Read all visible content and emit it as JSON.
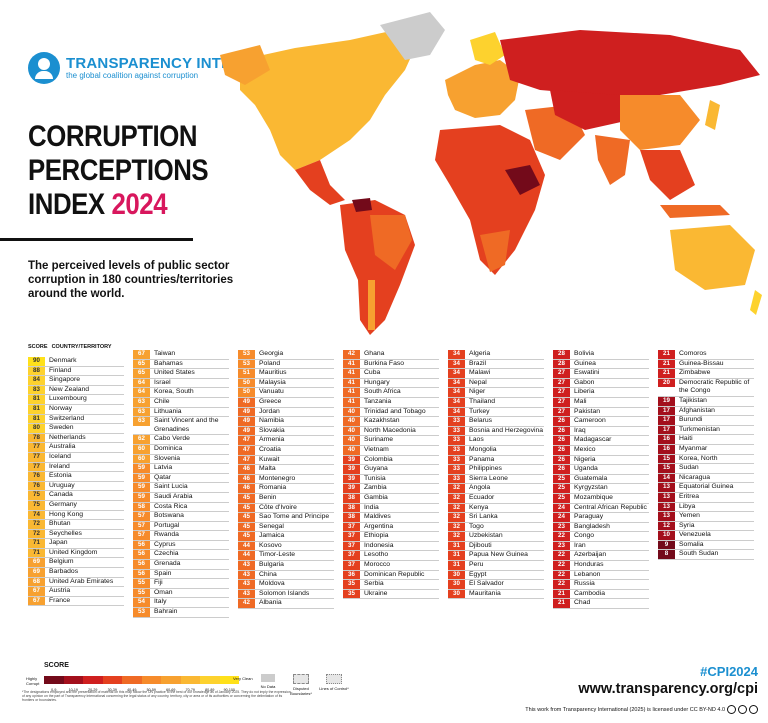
{
  "logo": {
    "name": "TRANSPARENCY INTERNATIONAL",
    "tagline": "the global coalition against corruption"
  },
  "title": {
    "line1": "CORRUPTION",
    "line2": "PERCEPTIONS",
    "line3": "INDEX",
    "year": "2024"
  },
  "subtitle": "The perceived levels of public sector corruption in 180 countries/territories around the world.",
  "table_header": {
    "score": "SCORE",
    "country": "COUNTRY/TERRITORY"
  },
  "colors": {
    "c90": "#ffe11a",
    "c80": "#fdd22e",
    "c70": "#fab833",
    "c60": "#f7a130",
    "c50": "#f68b2b",
    "c40": "#ef6a25",
    "c30": "#e4401f",
    "c20": "#cf1f1f",
    "c10": "#a30f1c",
    "c0": "#730a1a",
    "none": "#cccccc",
    "grid": "#e6e6e6"
  },
  "chart_data": {
    "type": "table",
    "title": "CORRUPTION PERCEPTIONS INDEX 2024",
    "columns": [
      "SCORE",
      "COUNTRY/TERRITORY"
    ],
    "rows": [
      [
        90,
        "Denmark"
      ],
      [
        88,
        "Finland"
      ],
      [
        84,
        "Singapore"
      ],
      [
        83,
        "New Zealand"
      ],
      [
        81,
        "Luxembourg"
      ],
      [
        81,
        "Norway"
      ],
      [
        81,
        "Switzerland"
      ],
      [
        80,
        "Sweden"
      ],
      [
        78,
        "Netherlands"
      ],
      [
        77,
        "Australia"
      ],
      [
        77,
        "Iceland"
      ],
      [
        77,
        "Ireland"
      ],
      [
        76,
        "Estonia"
      ],
      [
        76,
        "Uruguay"
      ],
      [
        75,
        "Canada"
      ],
      [
        75,
        "Germany"
      ],
      [
        74,
        "Hong Kong"
      ],
      [
        72,
        "Bhutan"
      ],
      [
        72,
        "Seychelles"
      ],
      [
        71,
        "Japan"
      ],
      [
        71,
        "United Kingdom"
      ],
      [
        69,
        "Belgium"
      ],
      [
        69,
        "Barbados"
      ],
      [
        68,
        "United Arab Emirates"
      ],
      [
        67,
        "Austria"
      ],
      [
        67,
        "France"
      ],
      [
        67,
        "Taiwan"
      ],
      [
        65,
        "Bahamas"
      ],
      [
        65,
        "United States"
      ],
      [
        64,
        "Israel"
      ],
      [
        64,
        "Korea, South"
      ],
      [
        63,
        "Chile"
      ],
      [
        63,
        "Lithuania"
      ],
      [
        63,
        "Saint Vincent and the Grenadines"
      ],
      [
        62,
        "Cabo Verde"
      ],
      [
        60,
        "Dominica"
      ],
      [
        60,
        "Slovenia"
      ],
      [
        59,
        "Latvia"
      ],
      [
        59,
        "Qatar"
      ],
      [
        59,
        "Saint Lucia"
      ],
      [
        59,
        "Saudi Arabia"
      ],
      [
        58,
        "Costa Rica"
      ],
      [
        57,
        "Botswana"
      ],
      [
        57,
        "Portugal"
      ],
      [
        57,
        "Rwanda"
      ],
      [
        56,
        "Cyprus"
      ],
      [
        56,
        "Czechia"
      ],
      [
        56,
        "Grenada"
      ],
      [
        56,
        "Spain"
      ],
      [
        55,
        "Fiji"
      ],
      [
        55,
        "Oman"
      ],
      [
        54,
        "Italy"
      ],
      [
        53,
        "Bahrain"
      ],
      [
        53,
        "Georgia"
      ],
      [
        53,
        "Poland"
      ],
      [
        51,
        "Mauritius"
      ],
      [
        50,
        "Malaysia"
      ],
      [
        50,
        "Vanuatu"
      ],
      [
        49,
        "Greece"
      ],
      [
        49,
        "Jordan"
      ],
      [
        49,
        "Namibia"
      ],
      [
        49,
        "Slovakia"
      ],
      [
        47,
        "Armenia"
      ],
      [
        47,
        "Croatia"
      ],
      [
        47,
        "Kuwait"
      ],
      [
        46,
        "Malta"
      ],
      [
        46,
        "Montenegro"
      ],
      [
        46,
        "Romania"
      ],
      [
        45,
        "Benin"
      ],
      [
        45,
        "Côte d'Ivoire"
      ],
      [
        45,
        "Sao Tome and Principe"
      ],
      [
        45,
        "Senegal"
      ],
      [
        45,
        "Jamaica"
      ],
      [
        44,
        "Kosovo"
      ],
      [
        44,
        "Timor-Leste"
      ],
      [
        43,
        "Bulgaria"
      ],
      [
        43,
        "China"
      ],
      [
        43,
        "Moldova"
      ],
      [
        43,
        "Solomon Islands"
      ],
      [
        42,
        "Albania"
      ],
      [
        42,
        "Ghana"
      ],
      [
        41,
        "Burkina Faso"
      ],
      [
        41,
        "Cuba"
      ],
      [
        41,
        "Hungary"
      ],
      [
        41,
        "South Africa"
      ],
      [
        41,
        "Tanzania"
      ],
      [
        40,
        "Trinidad and Tobago"
      ],
      [
        40,
        "Kazakhstan"
      ],
      [
        40,
        "North Macedonia"
      ],
      [
        40,
        "Suriname"
      ],
      [
        40,
        "Vietnam"
      ],
      [
        39,
        "Colombia"
      ],
      [
        39,
        "Guyana"
      ],
      [
        39,
        "Tunisia"
      ],
      [
        39,
        "Zambia"
      ],
      [
        38,
        "Gambia"
      ],
      [
        38,
        "India"
      ],
      [
        38,
        "Maldives"
      ],
      [
        37,
        "Argentina"
      ],
      [
        37,
        "Ethiopia"
      ],
      [
        37,
        "Indonesia"
      ],
      [
        37,
        "Lesotho"
      ],
      [
        37,
        "Morocco"
      ],
      [
        36,
        "Dominican Republic"
      ],
      [
        35,
        "Serbia"
      ],
      [
        35,
        "Ukraine"
      ],
      [
        34,
        "Algeria"
      ],
      [
        34,
        "Brazil"
      ],
      [
        34,
        "Malawi"
      ],
      [
        34,
        "Nepal"
      ],
      [
        34,
        "Niger"
      ],
      [
        34,
        "Thailand"
      ],
      [
        34,
        "Turkey"
      ],
      [
        33,
        "Belarus"
      ],
      [
        33,
        "Bosnia and Herzegovina"
      ],
      [
        33,
        "Laos"
      ],
      [
        33,
        "Mongolia"
      ],
      [
        33,
        "Panama"
      ],
      [
        33,
        "Philippines"
      ],
      [
        33,
        "Sierra Leone"
      ],
      [
        32,
        "Angola"
      ],
      [
        32,
        "Ecuador"
      ],
      [
        32,
        "Kenya"
      ],
      [
        32,
        "Sri Lanka"
      ],
      [
        32,
        "Togo"
      ],
      [
        32,
        "Uzbekistan"
      ],
      [
        31,
        "Djibouti"
      ],
      [
        31,
        "Papua New Guinea"
      ],
      [
        31,
        "Peru"
      ],
      [
        30,
        "Egypt"
      ],
      [
        30,
        "El Salvador"
      ],
      [
        30,
        "Mauritania"
      ],
      [
        28,
        "Bolivia"
      ],
      [
        28,
        "Guinea"
      ],
      [
        27,
        "Eswatini"
      ],
      [
        27,
        "Gabon"
      ],
      [
        27,
        "Liberia"
      ],
      [
        27,
        "Mali"
      ],
      [
        27,
        "Pakistan"
      ],
      [
        26,
        "Cameroon"
      ],
      [
        26,
        "Iraq"
      ],
      [
        26,
        "Madagascar"
      ],
      [
        26,
        "Mexico"
      ],
      [
        26,
        "Nigeria"
      ],
      [
        26,
        "Uganda"
      ],
      [
        25,
        "Guatemala"
      ],
      [
        25,
        "Kyrgyzstan"
      ],
      [
        25,
        "Mozambique"
      ],
      [
        24,
        "Central African Republic"
      ],
      [
        24,
        "Paraguay"
      ],
      [
        23,
        "Bangladesh"
      ],
      [
        22,
        "Congo"
      ],
      [
        23,
        "Iran"
      ],
      [
        22,
        "Azerbaijan"
      ],
      [
        22,
        "Honduras"
      ],
      [
        22,
        "Lebanon"
      ],
      [
        22,
        "Russia"
      ],
      [
        21,
        "Cambodia"
      ],
      [
        21,
        "Chad"
      ],
      [
        21,
        "Comoros"
      ],
      [
        21,
        "Guinea-Bissau"
      ],
      [
        21,
        "Zimbabwe"
      ],
      [
        20,
        "Democratic Republic of the Congo"
      ],
      [
        19,
        "Tajikistan"
      ],
      [
        17,
        "Afghanistan"
      ],
      [
        17,
        "Burundi"
      ],
      [
        17,
        "Turkmenistan"
      ],
      [
        16,
        "Haiti"
      ],
      [
        16,
        "Myanmar"
      ],
      [
        15,
        "Korea, North"
      ],
      [
        15,
        "Sudan"
      ],
      [
        14,
        "Nicaragua"
      ],
      [
        13,
        "Equatorial Guinea"
      ],
      [
        13,
        "Eritrea"
      ],
      [
        13,
        "Libya"
      ],
      [
        13,
        "Yemen"
      ],
      [
        12,
        "Syria"
      ],
      [
        10,
        "Venezuela"
      ],
      [
        9,
        "Somalia"
      ],
      [
        8,
        "South Sudan"
      ]
    ],
    "column_breaks": [
      26,
      53,
      80,
      106,
      132,
      159,
      180
    ]
  },
  "legend": {
    "title": "SCORE",
    "low": "Highly Corrupt",
    "high": "Very Clean",
    "ranges": [
      "0-9",
      "10-19",
      "20-29",
      "30-39",
      "40-49",
      "50-59",
      "60-69",
      "70-79",
      "80-89",
      "90-100"
    ],
    "no_data": "No Data",
    "disputed": "Disputed Boundaries*",
    "loc": "Lines of Control*"
  },
  "footnote": "*The designations employed and the presentation of material on this map follow the UN practice to the best of our knowledge as of January 2025. They do not imply the expression of any opinion on the part of Transparency International concerning the legal status of any country, territory, city or area or of its authorities or concerning the delimitation of its frontiers or boundaries.",
  "hashtag": "#CPI2024",
  "url": "www.transparency.org/cpi",
  "license": "This work from Transparency International (2025) is licensed under CC BY-ND 4.0"
}
